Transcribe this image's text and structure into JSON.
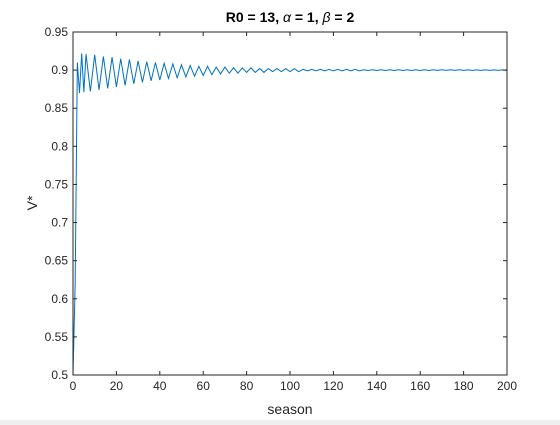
{
  "colors": {
    "figure_background": "#ffffff",
    "axes_background": "#ffffff",
    "axis_color": "#262626",
    "series_color": "#0072bd"
  },
  "chart_data": {
    "type": "line",
    "title": {
      "prefix": "R0 = 13, ",
      "alpha_symbol": "α",
      "alpha_part": " = 1, ",
      "beta_symbol": "β",
      "beta_part": " = 2"
    },
    "xlabel": "season",
    "ylabel": "V*",
    "xlim": [
      0,
      200
    ],
    "ylim": [
      0.5,
      0.95
    ],
    "xticks": [
      0,
      20,
      40,
      60,
      80,
      100,
      120,
      140,
      160,
      180,
      200
    ],
    "yticks": [
      0.5,
      0.55,
      0.6,
      0.65,
      0.7,
      0.75,
      0.8,
      0.85,
      0.9,
      0.95
    ],
    "xtick_labels": [
      "0",
      "20",
      "40",
      "60",
      "80",
      "100",
      "120",
      "140",
      "160",
      "180",
      "200"
    ],
    "ytick_labels": [
      "0.5",
      "0.55",
      "0.6",
      "0.65",
      "0.7",
      "0.75",
      "0.8",
      "0.85",
      "0.9",
      "0.95"
    ],
    "grid": false,
    "box": true,
    "series": [
      {
        "x": [
          0,
          1,
          2,
          3,
          4,
          5,
          6,
          8,
          10,
          12,
          14,
          16,
          18,
          20,
          22,
          24,
          26,
          28,
          30,
          32,
          34,
          36,
          38,
          40,
          42,
          44,
          46,
          48,
          50,
          52,
          54,
          56,
          58,
          60,
          62,
          64,
          66,
          68,
          70,
          72,
          74,
          76,
          78,
          80,
          82,
          84,
          86,
          88,
          90,
          92,
          94,
          96,
          98,
          100,
          102,
          104,
          106,
          108,
          110,
          112,
          114,
          116,
          118,
          120,
          122,
          124,
          126,
          128,
          130,
          132,
          134,
          136,
          138,
          140,
          142,
          144,
          146,
          148,
          150,
          152,
          154,
          156,
          158,
          160,
          162,
          164,
          166,
          168,
          170,
          172,
          174,
          176,
          178,
          180,
          182,
          184,
          186,
          188,
          190,
          192,
          194,
          196,
          198,
          200
        ],
        "y": [
          0.5,
          0.62,
          0.91,
          0.87,
          0.922,
          0.871,
          0.921,
          0.872,
          0.92,
          0.874,
          0.918,
          0.876,
          0.917,
          0.878,
          0.915,
          0.88,
          0.914,
          0.882,
          0.912,
          0.884,
          0.911,
          0.886,
          0.91,
          0.887,
          0.909,
          0.889,
          0.908,
          0.89,
          0.907,
          0.891,
          0.906,
          0.892,
          0.905,
          0.893,
          0.905,
          0.894,
          0.904,
          0.895,
          0.904,
          0.896,
          0.903,
          0.896,
          0.903,
          0.897,
          0.903,
          0.897,
          0.902,
          0.897,
          0.902,
          0.898,
          0.902,
          0.898,
          0.902,
          0.898,
          0.902,
          0.898,
          0.901,
          0.899,
          0.901,
          0.899,
          0.901,
          0.899,
          0.901,
          0.899,
          0.901,
          0.899,
          0.901,
          0.899,
          0.901,
          0.899,
          0.9005,
          0.8995,
          0.9005,
          0.8995,
          0.9005,
          0.8995,
          0.9005,
          0.8995,
          0.9005,
          0.8995,
          0.9005,
          0.8995,
          0.9005,
          0.8995,
          0.9005,
          0.8995,
          0.9004,
          0.8996,
          0.9004,
          0.8996,
          0.9004,
          0.8996,
          0.9004,
          0.8996,
          0.9003,
          0.8997,
          0.9003,
          0.8997,
          0.9003,
          0.8997,
          0.9003,
          0.8997,
          0.9003,
          0.8997
        ]
      }
    ]
  }
}
